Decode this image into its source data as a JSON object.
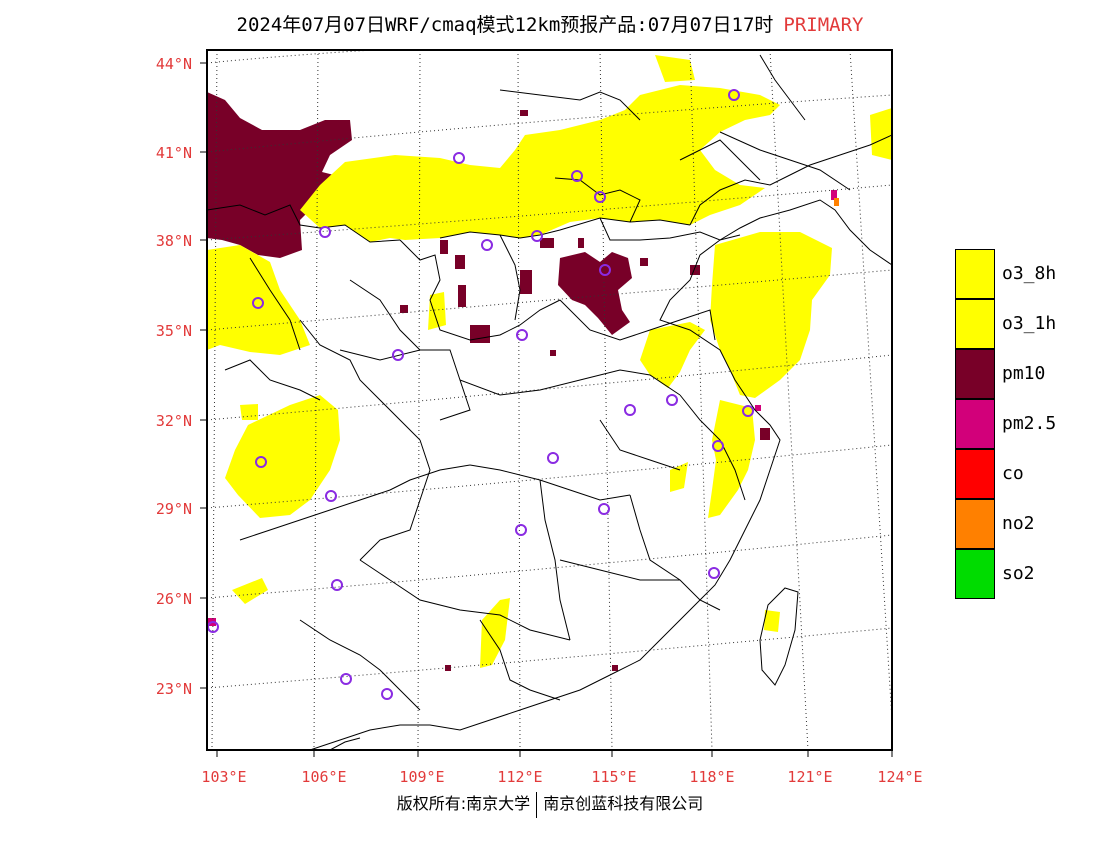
{
  "title": {
    "main": "2024年07月07日WRF/cmaq模式12km预报产品:07月07日17时",
    "tag": "PRIMARY"
  },
  "colors": {
    "o3_8h": "#ffff00",
    "o3_1h": "#ffff00",
    "pm10": "#780028",
    "pm25": "#d2007a",
    "co": "#ff0000",
    "no2": "#ff8000",
    "so2": "#00dc00",
    "station_marker": "#8a2be2",
    "axis_label": "#e23a3a"
  },
  "legend": [
    {
      "key": "o3_8h",
      "label": "o3_8h",
      "color": "#ffff00"
    },
    {
      "key": "o3_1h",
      "label": "o3_1h",
      "color": "#ffff00"
    },
    {
      "key": "pm10",
      "label": "pm10",
      "color": "#780028"
    },
    {
      "key": "pm25",
      "label": "pm2.5",
      "color": "#d2007a"
    },
    {
      "key": "co",
      "label": "co",
      "color": "#ff0000"
    },
    {
      "key": "no2",
      "label": "no2",
      "color": "#ff8000"
    },
    {
      "key": "so2",
      "label": "so2",
      "color": "#00dc00"
    }
  ],
  "lat_labels": [
    "44°N",
    "41°N",
    "38°N",
    "35°N",
    "32°N",
    "29°N",
    "26°N",
    "23°N"
  ],
  "lon_labels": [
    "103°E",
    "106°E",
    "109°E",
    "112°E",
    "115°E",
    "118°E",
    "121°E",
    "124°E"
  ],
  "footer": {
    "left": "版权所有:南京大学",
    "right": "南京创蓝科技有限公司"
  }
}
